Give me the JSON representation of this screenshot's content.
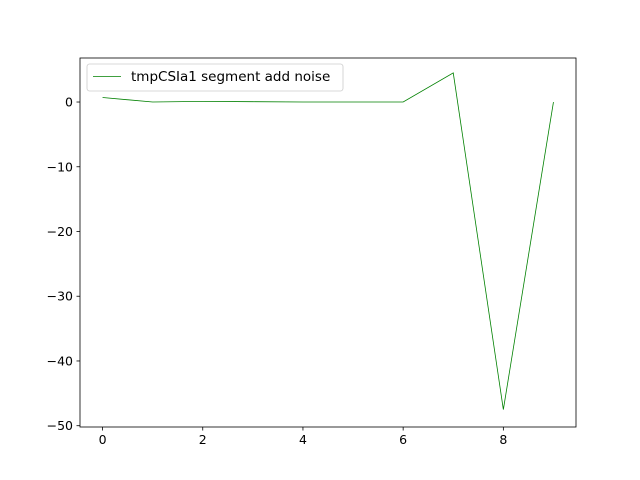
{
  "chart_data": {
    "type": "line",
    "title": "",
    "xlabel": "",
    "ylabel": "",
    "xlim": [
      -0.45,
      9.45
    ],
    "ylim": [
      -50.2,
      6.8
    ],
    "x_ticks": [
      0,
      2,
      4,
      6,
      8
    ],
    "y_ticks": [
      0,
      -10,
      -20,
      -30,
      -40,
      -50
    ],
    "grid": false,
    "legend_position": "upper-left",
    "series": [
      {
        "name": "tmpCSIa1 segment add noise",
        "color": "#008000",
        "x": [
          0,
          1,
          2,
          3,
          4,
          5,
          6,
          7,
          8,
          9
        ],
        "y": [
          0.7,
          0.0,
          0.1,
          0.05,
          0.0,
          0.0,
          0.0,
          4.5,
          -47.5,
          0.0
        ]
      }
    ]
  }
}
